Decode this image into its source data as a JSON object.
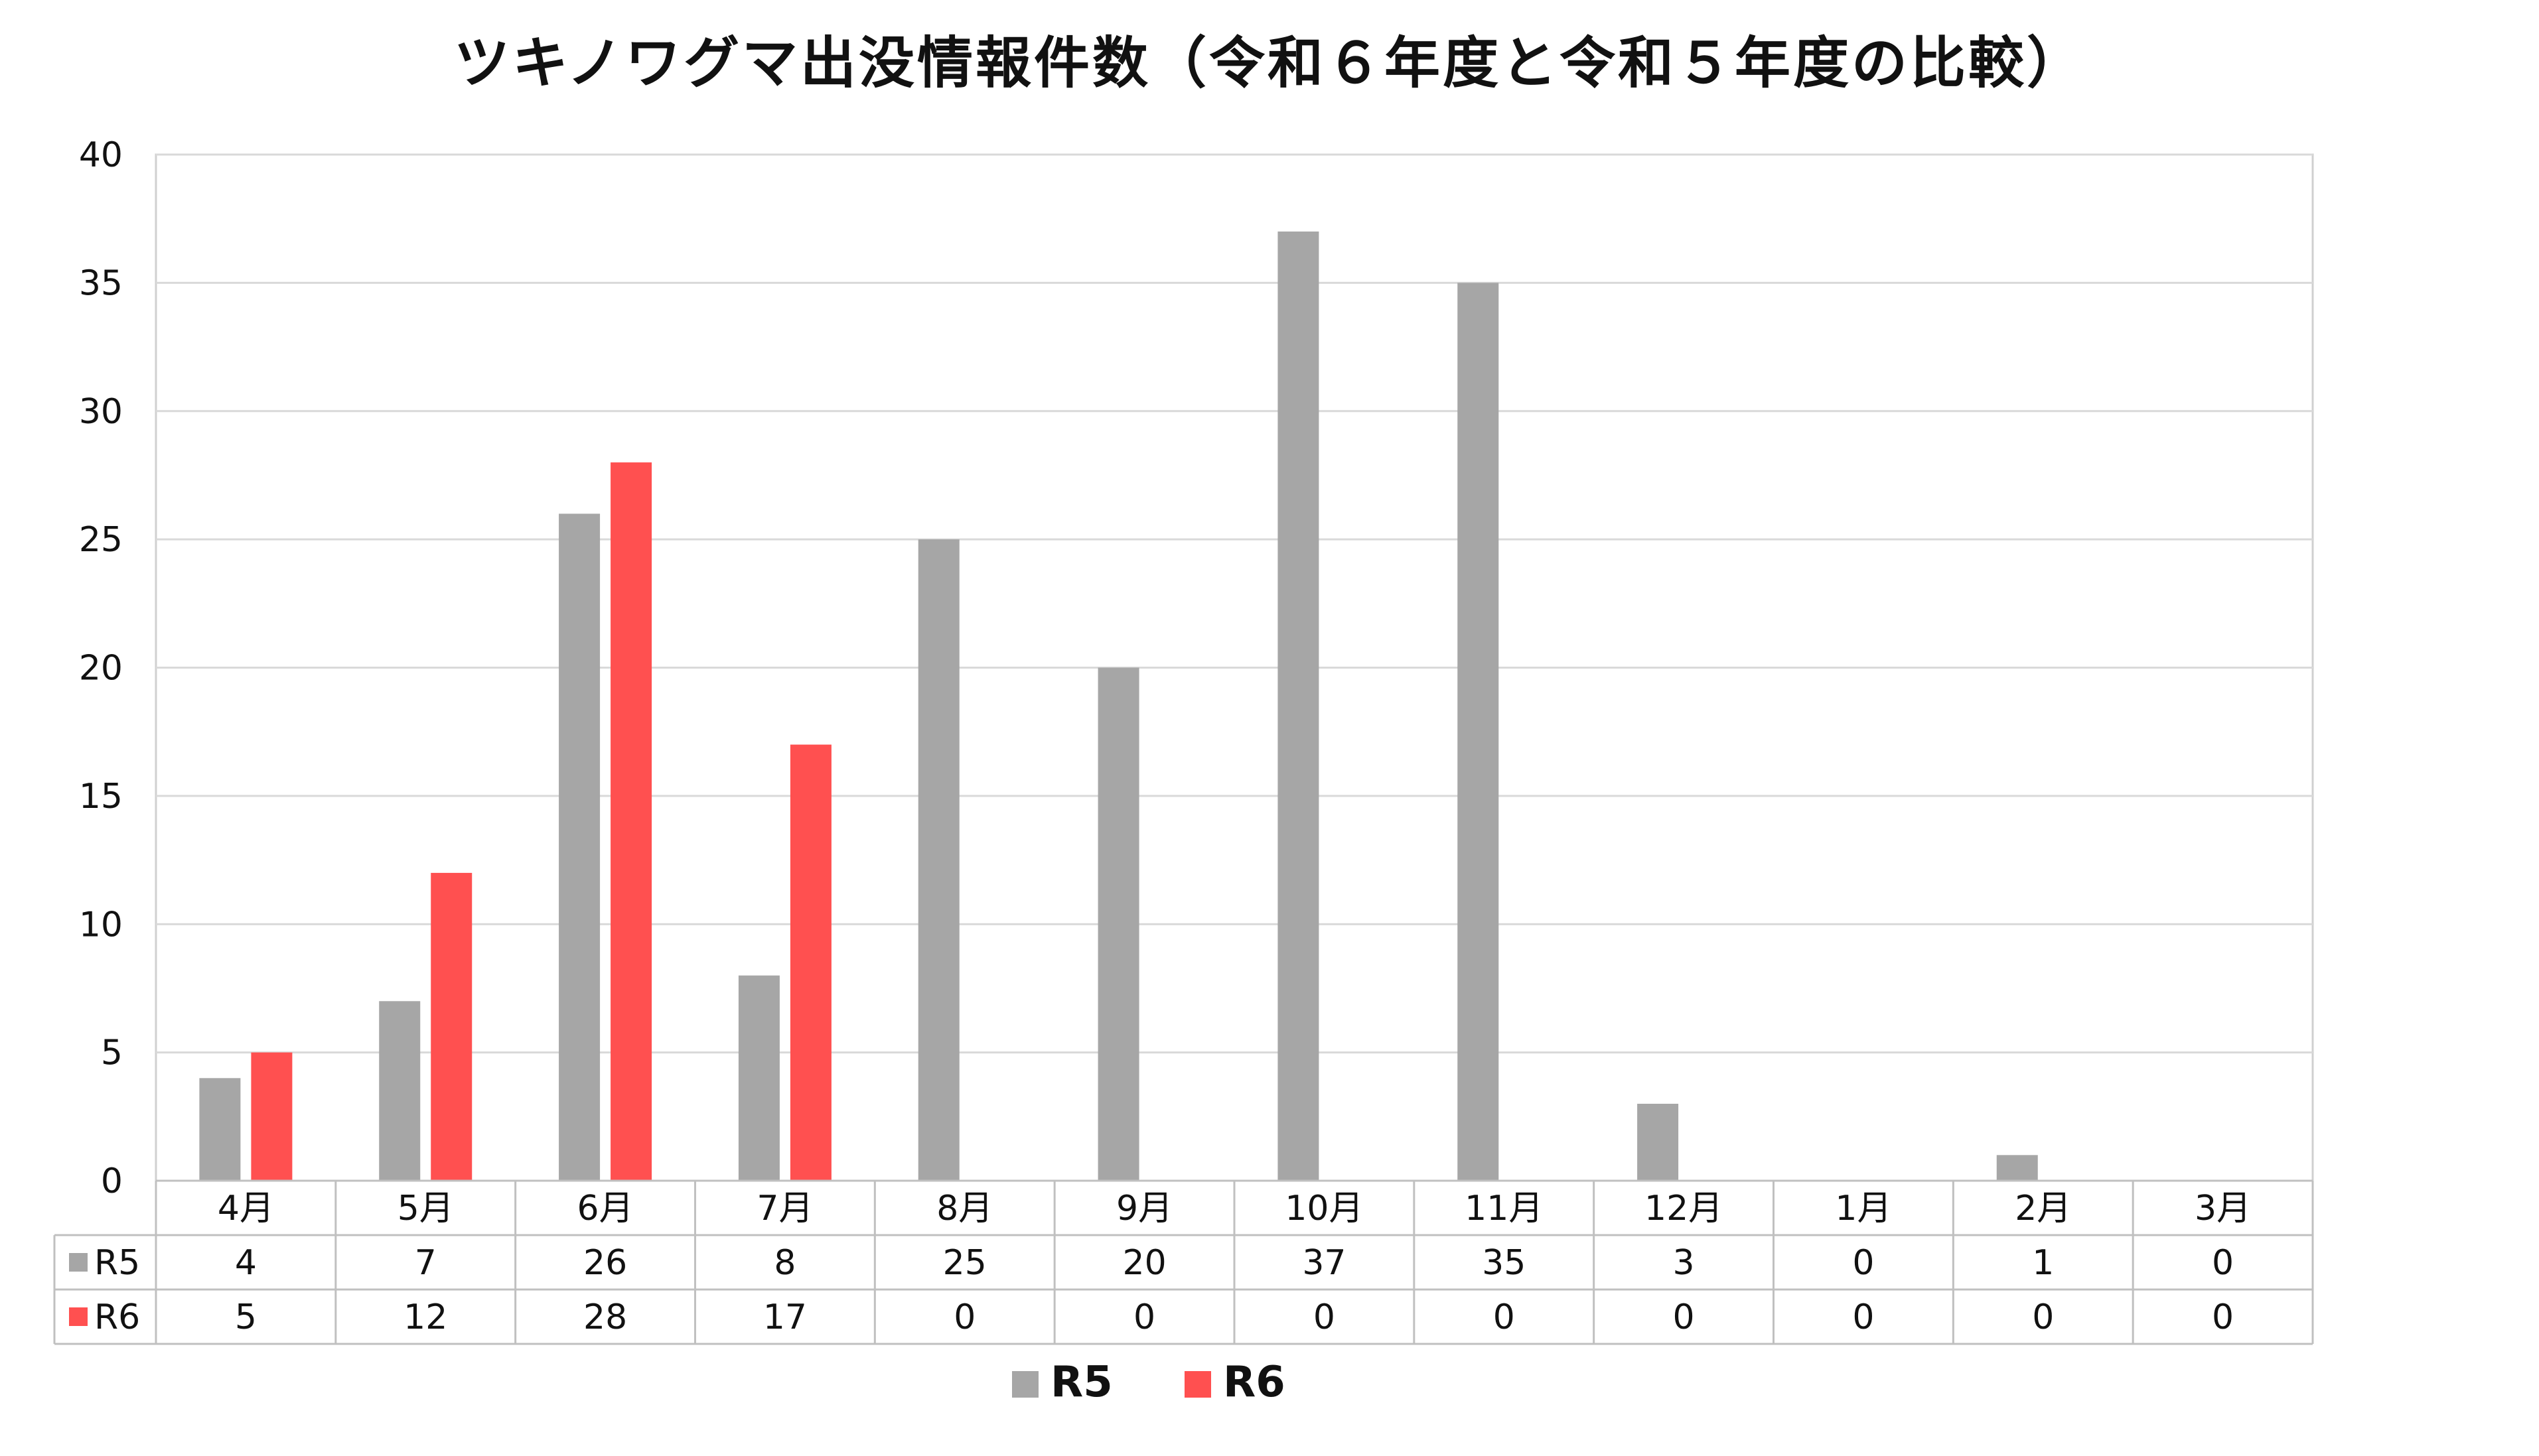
{
  "chart_data": {
    "type": "bar",
    "title": "ツキノワグマ出没情報件数（令和６年度と令和５年度の比較）",
    "categories": [
      "4月",
      "5月",
      "6月",
      "7月",
      "8月",
      "9月",
      "10月",
      "11月",
      "12月",
      "1月",
      "2月",
      "3月"
    ],
    "series": [
      {
        "name": "R5",
        "color": "#a6a6a6",
        "values": [
          4,
          7,
          26,
          8,
          25,
          20,
          37,
          35,
          3,
          0,
          1,
          0
        ]
      },
      {
        "name": "R6",
        "color": "#ff5050",
        "values": [
          5,
          12,
          28,
          17,
          0,
          0,
          0,
          0,
          0,
          0,
          0,
          0
        ]
      }
    ],
    "ylim": [
      0,
      40
    ],
    "yticks": [
      "0",
      "5",
      "10",
      "15",
      "20",
      "25",
      "30",
      "35",
      "40"
    ],
    "grid": true,
    "data_table": true,
    "legend_position": "bottom",
    "xlabel": "",
    "ylabel": ""
  }
}
